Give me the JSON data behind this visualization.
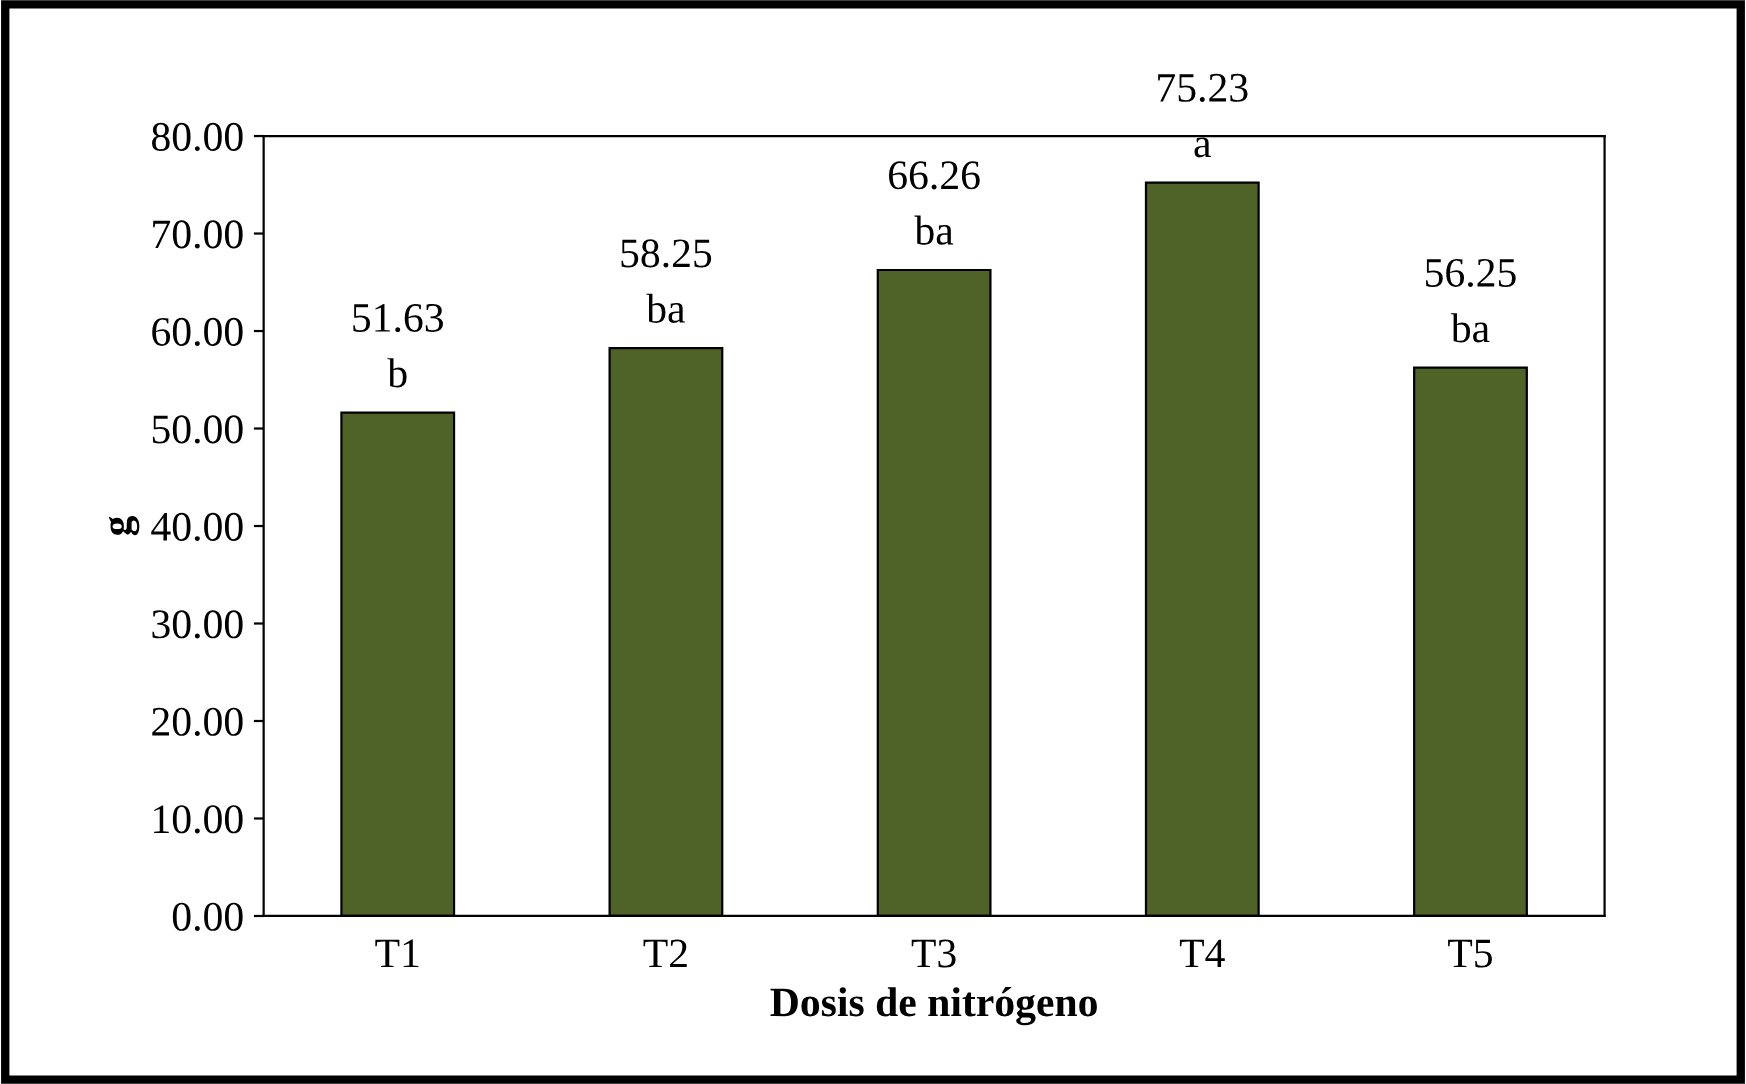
{
  "chart_data": {
    "type": "bar",
    "xlabel": "Dosis de nitrógeno",
    "ylabel": "g",
    "categories": [
      "T1",
      "T2",
      "T3",
      "T4",
      "T5"
    ],
    "values": [
      51.63,
      58.25,
      66.26,
      75.23,
      56.25
    ],
    "color": "#4f6228",
    "ylim": [
      0,
      80
    ],
    "yticks": [
      {
        "value": 0,
        "label": "0.00"
      },
      {
        "value": 10,
        "label": "10.00"
      },
      {
        "value": 20,
        "label": "20.00"
      },
      {
        "value": 30,
        "label": "30.00"
      },
      {
        "value": 40,
        "label": "40.00"
      },
      {
        "value": 50,
        "label": "50.00"
      },
      {
        "value": 60,
        "label": "60.00"
      },
      {
        "value": 70,
        "label": "70.00"
      },
      {
        "value": 80,
        "label": "80.00"
      }
    ],
    "data_labels": true,
    "annotations": [
      {
        "text": "b",
        "x": "T1",
        "y": 51.63
      },
      {
        "text": "ba",
        "x": "T2",
        "y": 58.25
      },
      {
        "text": "ba",
        "x": "T3",
        "y": 66.26
      },
      {
        "text": "a",
        "x": "T4",
        "y": 75.23
      },
      {
        "text": "ba",
        "x": "T5",
        "y": 56.25
      }
    ],
    "grid": false,
    "legend": false
  }
}
